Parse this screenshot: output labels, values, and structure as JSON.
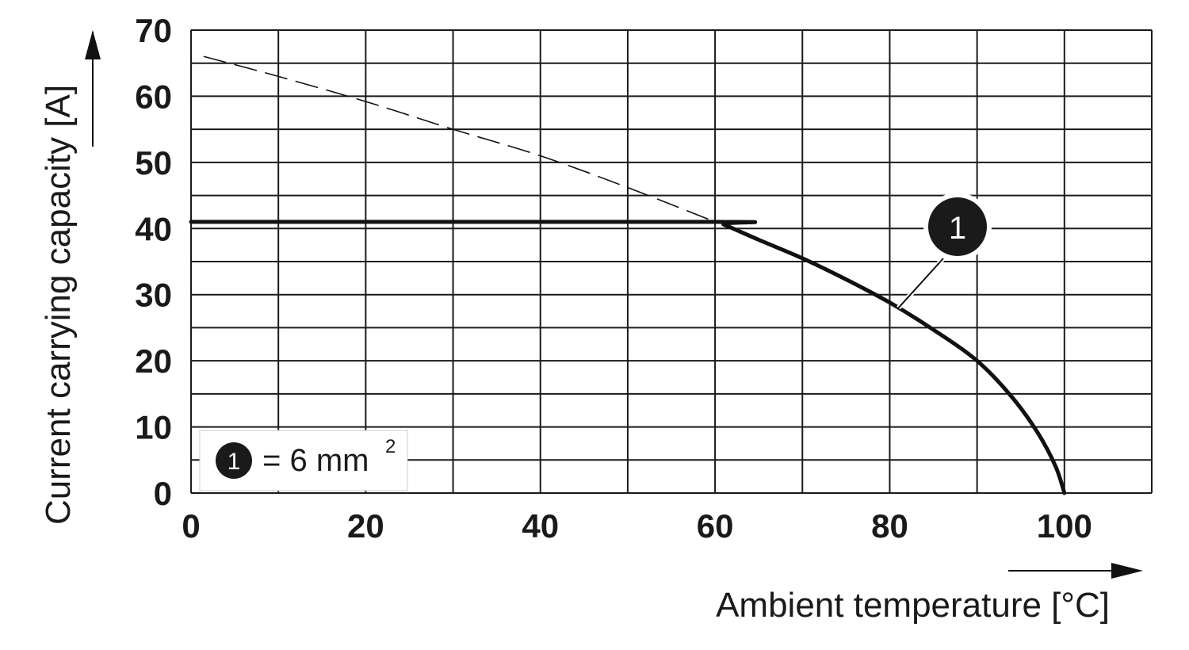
{
  "chart_data": {
    "type": "line",
    "xlabel": "Ambient temperature [°C]",
    "ylabel": "Current carrying capacity [A]",
    "xlim": [
      0,
      110
    ],
    "ylim": [
      0,
      70
    ],
    "x_ticks": [
      0,
      20,
      40,
      60,
      80,
      100
    ],
    "x_tick_labels": [
      "0",
      "20",
      "40",
      "60",
      "80",
      "100"
    ],
    "y_ticks": [
      0,
      10,
      20,
      30,
      40,
      50,
      60,
      70
    ],
    "y_tick_labels": [
      "0",
      "10",
      "20",
      "30",
      "40",
      "50",
      "60",
      "70"
    ],
    "x_gridlines": [
      0,
      10,
      20,
      30,
      40,
      50,
      60,
      70,
      80,
      90,
      100,
      110
    ],
    "y_gridlines": [
      0,
      5,
      10,
      15,
      20,
      25,
      30,
      35,
      40,
      45,
      50,
      55,
      60,
      65,
      70
    ],
    "grid": true,
    "series": [
      {
        "name": "1",
        "style": "solid",
        "color": "#111111",
        "x": [
          0,
          60,
          61,
          65,
          70,
          75,
          80,
          85,
          90,
          94,
          97,
          99,
          100
        ],
        "y": [
          41,
          41,
          40.6,
          38.3,
          35.5,
          32.3,
          28.8,
          24.7,
          20,
          14.5,
          9,
          4,
          0
        ]
      },
      {
        "name": "",
        "style": "dashed",
        "color": "#111111",
        "x": [
          1.5,
          10,
          20,
          30,
          40,
          50,
          60
        ],
        "y": [
          66,
          63,
          59.2,
          55,
          51,
          46.2,
          41
        ]
      }
    ],
    "annotations": [
      {
        "label": "1",
        "points_to": {
          "x": 81,
          "y": 28
        }
      }
    ],
    "legend": {
      "placement": "bottom-left",
      "marker": "1",
      "text": "= 6 mm",
      "superscript": "2"
    }
  }
}
